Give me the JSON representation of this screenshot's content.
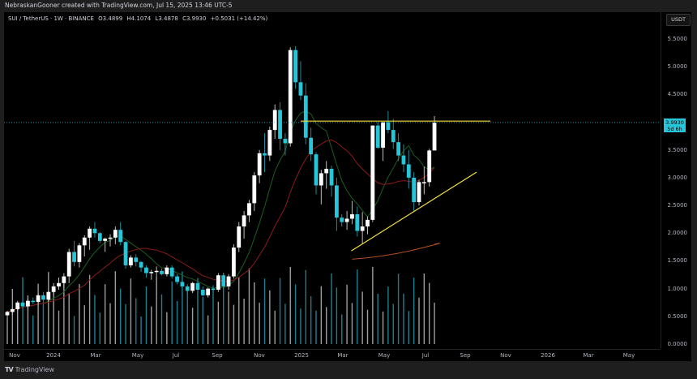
{
  "header": {
    "attribution": "NebraskanGooner created with TradingView.com, Jul 15, 2025 13:46 UTC-5"
  },
  "legend": {
    "symbol": "SUI / TetherUS · 1W · BINANCE",
    "open": "O3.4899",
    "high": "H4.1074",
    "low": "L3.4878",
    "close": "C3.9930",
    "change": "+0.5031 (+14.42%)"
  },
  "price_axis": {
    "currency_badge": "USDT",
    "last_price": "3.9930",
    "countdown": "5d 6h",
    "ticks": [
      "5.5000",
      "5.0000",
      "4.5000",
      "3.5000",
      "3.0000",
      "2.5000",
      "2.0000",
      "1.5000",
      "1.0000",
      "0.5000",
      "0.0000"
    ]
  },
  "time_axis": {
    "ticks": [
      "Nov",
      "2024",
      "Mar",
      "May",
      "Jul",
      "Sep",
      "Nov",
      "2025",
      "Mar",
      "May",
      "Jul",
      "Sep",
      "Nov",
      "2026",
      "Mar",
      "May"
    ]
  },
  "footer": {
    "logo": "TV",
    "brand": "TradingView"
  },
  "colors": {
    "up": "#ffffff",
    "down": "#26c6da",
    "ma_fast": "#1b5e20",
    "ma_slow": "#8b1a1a",
    "ma_long": "#b5541c",
    "trend": "#f5e13a",
    "volume_up": "#9e9e9e",
    "volume_down": "#1f7f8e"
  },
  "chart_data": {
    "type": "candlestick",
    "title": "SUI / TetherUS · 1W · BINANCE",
    "xlabel": "",
    "ylabel": "USDT",
    "ylim": [
      0,
      5.7
    ],
    "x_ticks": [
      "Nov",
      "2024",
      "Mar",
      "May",
      "Jul",
      "Sep",
      "Nov",
      "2025",
      "Mar",
      "May",
      "Jul",
      "Sep",
      "Nov",
      "2026",
      "Mar",
      "May"
    ],
    "y_ticks": [
      0,
      0.5,
      1.0,
      1.5,
      2.0,
      2.5,
      3.0,
      3.5,
      4.0,
      4.5,
      5.0,
      5.5
    ],
    "last": {
      "open": 3.4899,
      "high": 4.1074,
      "low": 3.4878,
      "close": 3.993,
      "change": 0.5031,
      "change_pct": 14.42
    },
    "candles_ohlc_approx": [
      [
        0.52,
        0.6,
        0.45,
        0.58
      ],
      [
        0.58,
        0.66,
        0.52,
        0.63
      ],
      [
        0.63,
        0.78,
        0.6,
        0.75
      ],
      [
        0.75,
        0.8,
        0.65,
        0.68
      ],
      [
        0.68,
        0.82,
        0.62,
        0.78
      ],
      [
        0.78,
        0.84,
        0.72,
        0.76
      ],
      [
        0.76,
        0.92,
        0.7,
        0.88
      ],
      [
        0.88,
        0.94,
        0.74,
        0.8
      ],
      [
        0.8,
        0.96,
        0.76,
        0.94
      ],
      [
        0.94,
        1.1,
        0.88,
        1.04
      ],
      [
        1.04,
        1.2,
        0.98,
        1.1
      ],
      [
        1.1,
        1.28,
        1.02,
        1.22
      ],
      [
        1.22,
        1.72,
        1.1,
        1.66
      ],
      [
        1.66,
        1.86,
        1.4,
        1.48
      ],
      [
        1.48,
        1.82,
        1.38,
        1.78
      ],
      [
        1.78,
        1.96,
        1.58,
        1.92
      ],
      [
        1.92,
        2.12,
        1.7,
        2.08
      ],
      [
        2.08,
        2.2,
        1.92,
        2.0
      ],
      [
        2.0,
        2.02,
        1.82,
        1.86
      ],
      [
        1.86,
        1.92,
        1.66,
        1.9
      ],
      [
        1.9,
        1.98,
        1.76,
        1.92
      ],
      [
        1.92,
        2.12,
        1.8,
        2.06
      ],
      [
        2.06,
        2.2,
        1.78,
        1.84
      ],
      [
        1.84,
        1.86,
        1.36,
        1.42
      ],
      [
        1.42,
        1.6,
        1.38,
        1.56
      ],
      [
        1.56,
        1.62,
        1.4,
        1.48
      ],
      [
        1.48,
        1.5,
        1.3,
        1.38
      ],
      [
        1.38,
        1.42,
        1.2,
        1.28
      ],
      [
        1.28,
        1.34,
        1.16,
        1.3
      ],
      [
        1.3,
        1.4,
        1.22,
        1.32
      ],
      [
        1.32,
        1.36,
        1.24,
        1.26
      ],
      [
        1.26,
        1.42,
        1.22,
        1.38
      ],
      [
        1.38,
        1.42,
        1.18,
        1.22
      ],
      [
        1.22,
        1.26,
        1.08,
        1.12
      ],
      [
        1.12,
        1.16,
        1.0,
        1.04
      ],
      [
        1.04,
        1.08,
        0.9,
        0.96
      ],
      [
        0.96,
        1.12,
        0.92,
        1.1
      ],
      [
        1.1,
        1.14,
        0.96,
        0.98
      ],
      [
        0.98,
        1.04,
        0.86,
        0.88
      ],
      [
        0.88,
        1.02,
        0.84,
        1.0
      ],
      [
        1.0,
        1.06,
        0.94,
        0.98
      ],
      [
        0.98,
        1.28,
        0.94,
        1.24
      ],
      [
        1.24,
        1.28,
        1.0,
        1.04
      ],
      [
        1.04,
        1.26,
        0.98,
        1.22
      ],
      [
        1.22,
        1.8,
        1.18,
        1.74
      ],
      [
        1.74,
        2.2,
        1.66,
        2.12
      ],
      [
        2.12,
        2.4,
        1.9,
        2.32
      ],
      [
        2.32,
        2.6,
        2.2,
        2.54
      ],
      [
        2.54,
        3.1,
        2.4,
        3.04
      ],
      [
        3.04,
        3.5,
        2.9,
        3.44
      ],
      [
        3.44,
        3.8,
        3.1,
        3.4
      ],
      [
        3.4,
        3.92,
        3.3,
        3.86
      ],
      [
        3.86,
        4.32,
        3.7,
        4.22
      ],
      [
        4.22,
        4.36,
        3.5,
        3.7
      ],
      [
        3.7,
        3.8,
        3.4,
        3.62
      ],
      [
        3.62,
        5.35,
        3.56,
        5.3
      ],
      [
        5.3,
        5.37,
        4.6,
        4.72
      ],
      [
        4.72,
        5.1,
        4.4,
        4.48
      ],
      [
        4.48,
        4.7,
        3.6,
        3.72
      ],
      [
        3.72,
        3.9,
        3.3,
        3.42
      ],
      [
        3.42,
        3.46,
        2.7,
        2.86
      ],
      [
        2.86,
        3.14,
        2.52,
        3.08
      ],
      [
        3.08,
        3.3,
        2.8,
        3.16
      ],
      [
        3.16,
        3.22,
        2.66,
        2.86
      ],
      [
        2.86,
        3.0,
        2.04,
        2.28
      ],
      [
        2.28,
        2.34,
        2.12,
        2.2
      ],
      [
        2.2,
        2.4,
        2.06,
        2.26
      ],
      [
        2.26,
        2.58,
        2.16,
        2.34
      ],
      [
        2.34,
        2.48,
        1.94,
        2.04
      ],
      [
        2.04,
        2.38,
        1.8,
        2.12
      ],
      [
        2.12,
        2.3,
        1.98,
        2.24
      ],
      [
        2.24,
        3.94,
        2.2,
        3.94
      ],
      [
        3.94,
        4.0,
        3.52,
        3.54
      ],
      [
        3.54,
        4.0,
        3.3,
        4.0
      ],
      [
        4.0,
        4.2,
        3.8,
        3.86
      ],
      [
        3.86,
        4.06,
        3.52,
        3.64
      ],
      [
        3.64,
        3.8,
        3.3,
        3.4
      ],
      [
        3.4,
        3.6,
        3.1,
        3.24
      ],
      [
        3.24,
        3.5,
        2.8,
        3.0
      ],
      [
        3.0,
        3.1,
        2.4,
        2.56
      ],
      [
        2.56,
        2.96,
        2.5,
        2.92
      ],
      [
        2.92,
        3.2,
        2.7,
        2.92
      ],
      [
        2.92,
        3.52,
        2.84,
        3.49
      ],
      [
        3.49,
        4.11,
        3.49,
        3.99
      ]
    ],
    "horizontal_line": {
      "price": 4.02,
      "color": "#f5e13a"
    },
    "trendline": {
      "from": [
        70,
        1.68
      ],
      "to": [
        96,
        3.1
      ],
      "color": "#f5e13a"
    },
    "series_notes": [
      "fast MA (dark green)",
      "slow MA (dark red)",
      "long MA (orange)",
      "volume histogram"
    ]
  }
}
